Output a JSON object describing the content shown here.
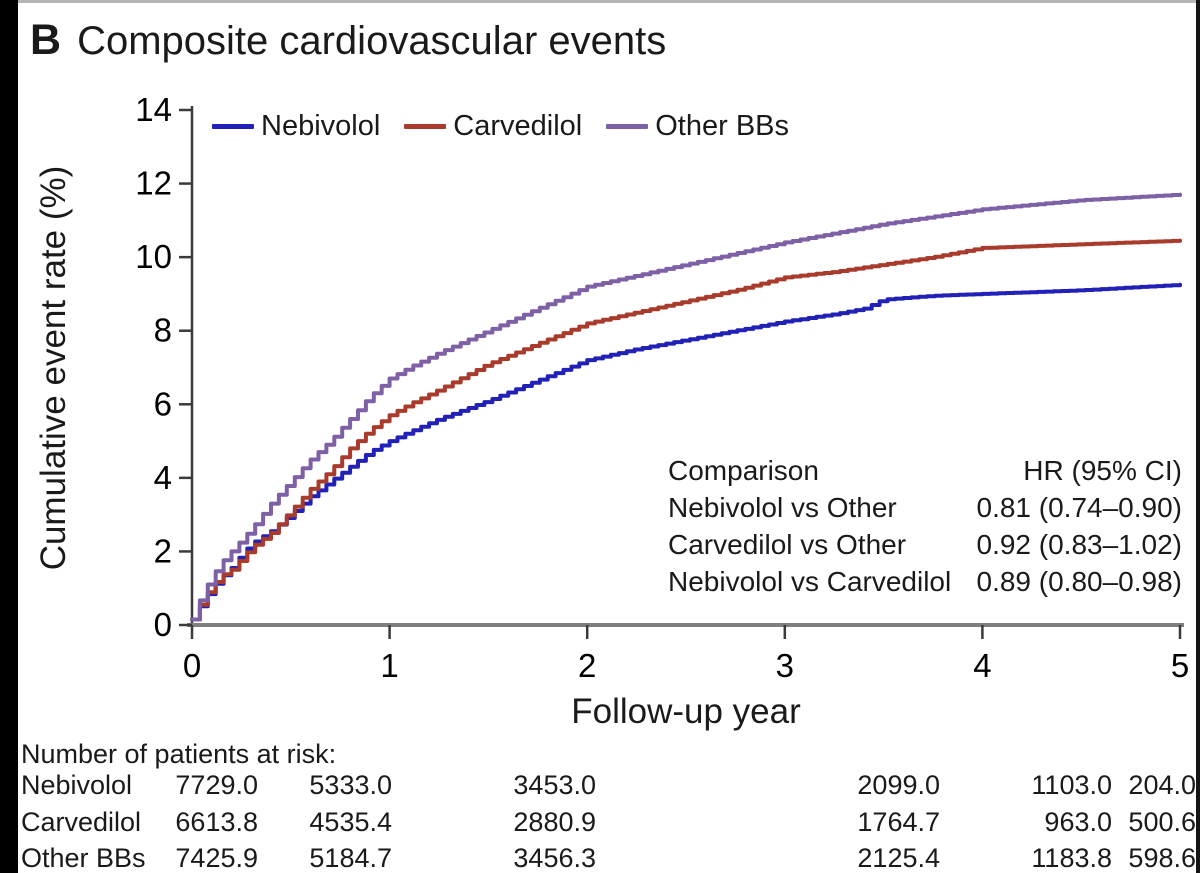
{
  "panel": {
    "label": "B",
    "title": "Composite cardiovascular events"
  },
  "chart_data": {
    "type": "line",
    "title": "B Composite cardiovascular events",
    "xlabel": "Follow-up year",
    "ylabel": "Cumulative event rate (%)",
    "xlim": [
      0,
      5
    ],
    "ylim": [
      0,
      14
    ],
    "x_ticks": [
      "0",
      "1",
      "2",
      "3",
      "4",
      "5"
    ],
    "y_ticks": [
      "0",
      "2",
      "4",
      "6",
      "8",
      "10",
      "12",
      "14"
    ],
    "grid": false,
    "legend_position": "top-left-inside",
    "series": [
      {
        "name": "Nebivolol",
        "color": "#2121b8",
        "points": [
          [
            0,
            0.15
          ],
          [
            0.05,
            0.6
          ],
          [
            0.1,
            1.0
          ],
          [
            0.15,
            1.3
          ],
          [
            0.2,
            1.55
          ],
          [
            0.25,
            1.9
          ],
          [
            0.3,
            2.2
          ],
          [
            0.4,
            2.55
          ],
          [
            0.5,
            3.0
          ],
          [
            0.6,
            3.5
          ],
          [
            0.7,
            3.9
          ],
          [
            0.8,
            4.3
          ],
          [
            0.9,
            4.7
          ],
          [
            1,
            5.0
          ],
          [
            1.1,
            5.25
          ],
          [
            1.25,
            5.6
          ],
          [
            1.5,
            6.1
          ],
          [
            1.75,
            6.65
          ],
          [
            2,
            7.2
          ],
          [
            2.25,
            7.5
          ],
          [
            2.5,
            7.75
          ],
          [
            2.75,
            8.0
          ],
          [
            3,
            8.25
          ],
          [
            3.25,
            8.45
          ],
          [
            3.4,
            8.6
          ],
          [
            3.5,
            8.85
          ],
          [
            3.75,
            8.95
          ],
          [
            4,
            9.0
          ],
          [
            4.5,
            9.1
          ],
          [
            5,
            9.25
          ]
        ]
      },
      {
        "name": "Carvedilol",
        "color": "#a83b2c",
        "points": [
          [
            0,
            0.15
          ],
          [
            0.05,
            0.65
          ],
          [
            0.1,
            1.05
          ],
          [
            0.15,
            1.35
          ],
          [
            0.2,
            1.5
          ],
          [
            0.25,
            1.8
          ],
          [
            0.3,
            2.1
          ],
          [
            0.4,
            2.5
          ],
          [
            0.5,
            3.1
          ],
          [
            0.6,
            3.7
          ],
          [
            0.7,
            4.2
          ],
          [
            0.8,
            4.8
          ],
          [
            0.9,
            5.3
          ],
          [
            1,
            5.7
          ],
          [
            1.1,
            6.0
          ],
          [
            1.25,
            6.4
          ],
          [
            1.5,
            7.1
          ],
          [
            1.75,
            7.65
          ],
          [
            2,
            8.2
          ],
          [
            2.25,
            8.5
          ],
          [
            2.5,
            8.8
          ],
          [
            2.75,
            9.1
          ],
          [
            3,
            9.45
          ],
          [
            3.25,
            9.6
          ],
          [
            3.5,
            9.8
          ],
          [
            3.75,
            10.0
          ],
          [
            4,
            10.25
          ],
          [
            4.5,
            10.35
          ],
          [
            5,
            10.45
          ]
        ]
      },
      {
        "name": "Other BBs",
        "color": "#7d60a5",
        "points": [
          [
            0,
            0.15
          ],
          [
            0.05,
            0.8
          ],
          [
            0.1,
            1.3
          ],
          [
            0.15,
            1.7
          ],
          [
            0.2,
            2.0
          ],
          [
            0.25,
            2.3
          ],
          [
            0.3,
            2.6
          ],
          [
            0.4,
            3.3
          ],
          [
            0.5,
            3.9
          ],
          [
            0.6,
            4.5
          ],
          [
            0.7,
            5.0
          ],
          [
            0.8,
            5.6
          ],
          [
            0.9,
            6.2
          ],
          [
            1,
            6.7
          ],
          [
            1.1,
            7.0
          ],
          [
            1.25,
            7.4
          ],
          [
            1.5,
            8.0
          ],
          [
            1.75,
            8.6
          ],
          [
            2,
            9.2
          ],
          [
            2.25,
            9.5
          ],
          [
            2.5,
            9.8
          ],
          [
            2.75,
            10.1
          ],
          [
            3,
            10.4
          ],
          [
            3.25,
            10.65
          ],
          [
            3.5,
            10.9
          ],
          [
            3.75,
            11.1
          ],
          [
            4,
            11.3
          ],
          [
            4.5,
            11.55
          ],
          [
            5,
            11.7
          ]
        ]
      }
    ]
  },
  "hr_table": {
    "header": {
      "comparison": "Comparison",
      "hr": "HR (95% CI)"
    },
    "rows": [
      {
        "comparison": "Nebivolol vs Other",
        "hr": "0.81 (0.74–0.90)"
      },
      {
        "comparison": "Carvedilol vs Other",
        "hr": "0.92 (0.83–1.02)"
      },
      {
        "comparison": "Nebivolol vs Carvedilol",
        "hr": "0.89 (0.80–0.98)"
      }
    ]
  },
  "at_risk": {
    "heading": "Number of patients at risk:",
    "rows": [
      {
        "label": "Nebivolol",
        "values": [
          "7729.0",
          "5333.0",
          "3453.0",
          "2099.0",
          "1103.0",
          "204.0"
        ]
      },
      {
        "label": "Carvedilol",
        "values": [
          "6613.8",
          "4535.4",
          "2880.9",
          "1764.7",
          "963.0",
          "500.6"
        ]
      },
      {
        "label": "Other BBs",
        "values": [
          "7425.9",
          "5184.7",
          "3456.3",
          "2125.4",
          "1183.8",
          "598.6"
        ]
      }
    ]
  },
  "colors": {
    "nebivolol": "#2121b8",
    "carvedilol": "#a83b2c",
    "other_bbs": "#7d60a5",
    "axis": "#7f7f7f",
    "tick": "#3a3a3a",
    "text": "#1a1a1a"
  }
}
